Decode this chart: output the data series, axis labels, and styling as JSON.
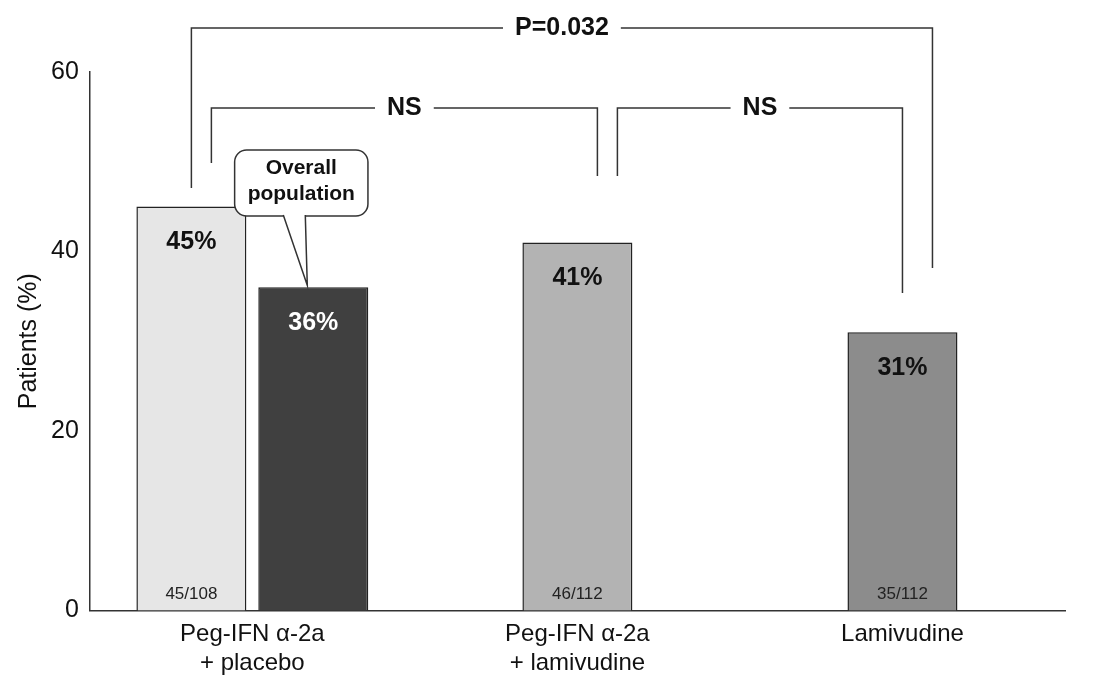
{
  "chart_data": {
    "type": "bar",
    "ylabel": "Patients (%)",
    "categories": [
      "Peg-IFN α-2a\n+ placebo",
      "Peg-IFN α-2a\n+ lamivudine",
      "Lamivudine"
    ],
    "series": [
      {
        "colors": [
          "#e6e6e6",
          "#b3b3b3",
          "#8c8c8c"
        ],
        "values": [
          45,
          41,
          31
        ],
        "value_labels": [
          "45%",
          "41%",
          "31%"
        ]
      },
      {
        "name": "Overall population",
        "color": "#404040",
        "values": [
          36,
          null,
          null
        ],
        "value_labels": [
          "36%",
          null,
          null
        ]
      }
    ],
    "ylim": [
      0,
      60
    ],
    "yticks": [
      0,
      20,
      40,
      60
    ],
    "grid": false,
    "legend": false,
    "annotations": [
      "P=0.032",
      "NS",
      "NS",
      "45/108",
      "46/112",
      "35/112"
    ]
  }
}
